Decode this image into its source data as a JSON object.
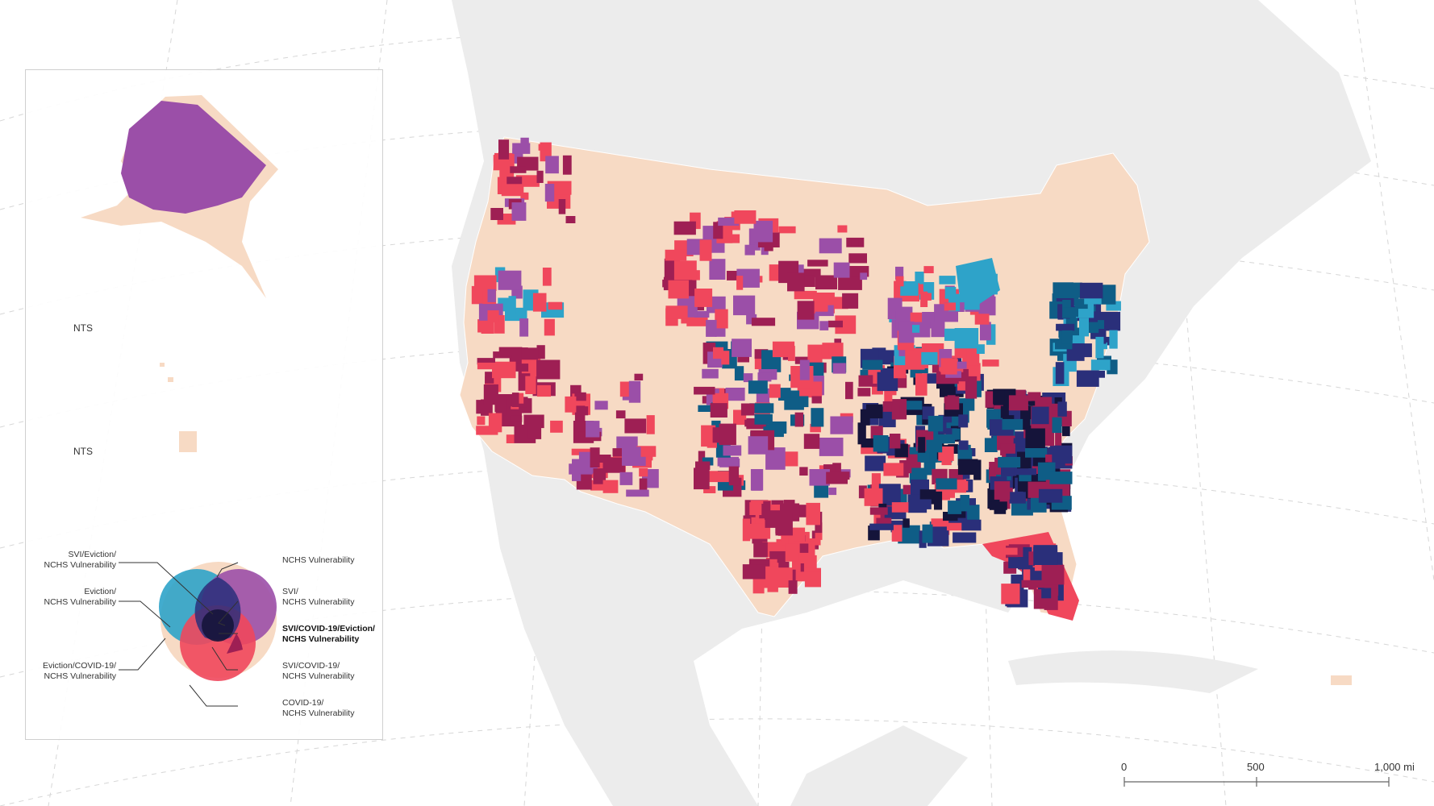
{
  "inset": {
    "alaska_scale_note": "NTS",
    "hawaii_scale_note": "NTS"
  },
  "legend": {
    "items": [
      {
        "label": "SVI/Eviction/\nNCHS Vulnerability",
        "color": "#2a2f7a"
      },
      {
        "label": "Eviction/\nNCHS Vulnerability",
        "color": "#2ea3c9"
      },
      {
        "label": "Eviction/COVID-19/\nNCHS Vulnerability",
        "color": "#0f5d86"
      },
      {
        "label": "NCHS Vulnerability",
        "color": "#f7dac4"
      },
      {
        "label": "SVI/\nNCHS Vulnerability",
        "color": "#9b4fa8"
      },
      {
        "label": "SVI/COVID-19/Eviction/\nNCHS Vulnerability",
        "color": "#15143a"
      },
      {
        "label": "SVI/COVID-19/\nNCHS Vulnerability",
        "color": "#9e1f54"
      },
      {
        "label": "COVID-19/\nNCHS Vulnerability",
        "color": "#f0475c"
      }
    ]
  },
  "scale_bar": {
    "ticks": [
      "0",
      "500",
      "1,000 mi"
    ]
  },
  "colors": {
    "nchs": "#f7dac4",
    "svi_nchs": "#9b4fa8",
    "covid_nchs": "#f0475c",
    "svi_covid_nchs": "#9e1f54",
    "eviction_nchs": "#2ea3c9",
    "eviction_covid_nchs": "#0f5d86",
    "svi_eviction_nchs": "#2a2f7a",
    "all_four": "#15143a",
    "land_background": "#ececec",
    "graticule": "#d4d4d4"
  }
}
